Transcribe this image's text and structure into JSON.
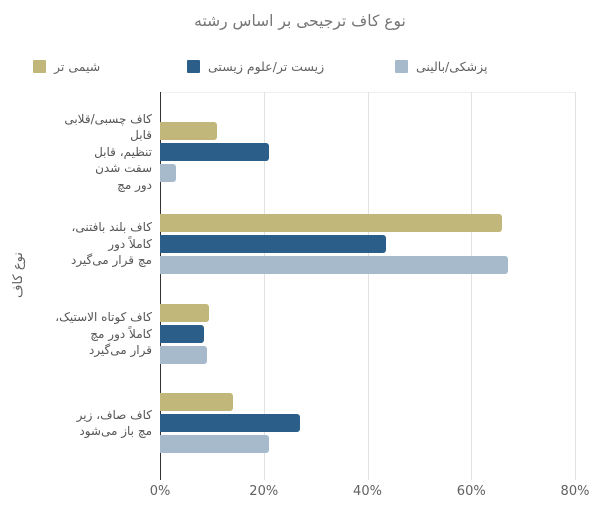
{
  "chart_data": {
    "type": "bar",
    "orientation": "horizontal",
    "title": "نوع کاف ترجیحی بر اساس رشته",
    "y_axis_title": "نوع کاف",
    "xlabel": "",
    "x_tick_labels": [
      "0%",
      "20%",
      "40%",
      "60%",
      "80%"
    ],
    "x_tick_values": [
      0,
      20,
      40,
      60,
      80
    ],
    "xlim": [
      0,
      80
    ],
    "grid": true,
    "legend_position": "top",
    "categories": [
      "کاف چسبی/قلابی قابل تنظیم، قابل سفت شدن دور مچ",
      "کاف بلند بافتنی، کاملاً دور مچ قرار می‌گیرد",
      "کاف کوتاه الاستیک، کاملاً دور مچ قرار می‌گیرد",
      "کاف صاف، زیر مچ باز می‌شود"
    ],
    "category_label_lines": [
      [
        "کاف چسبی/قلابی",
        "قابل",
        "تنظیم، قابل",
        "سفت شدن",
        "دور مچ"
      ],
      [
        "کاف بلند بافتنی،",
        "کاملاً دور",
        "مچ قرار می‌گیرد"
      ],
      [
        "کاف کوتاه الاستیک،",
        "کاملاً دور مچ",
        "قرار می‌گیرد"
      ],
      [
        "کاف صاف، زیر",
        "مچ باز می‌شود"
      ]
    ],
    "series": [
      {
        "name": "شیمی تر",
        "color": "#c2b77b",
        "values": [
          11,
          66,
          9.5,
          14
        ]
      },
      {
        "name": "زیست تر/علوم زیستی",
        "color": "#2b5f8a",
        "values": [
          21,
          43.5,
          8.5,
          27
        ]
      },
      {
        "name": "پزشکی/بالینی",
        "color": "#a6bacc",
        "values": [
          3,
          67,
          9,
          21
        ]
      }
    ]
  },
  "colors": {
    "title_text": "#757575",
    "axis_text": "#616161",
    "category_text": "#555555",
    "gridline": "#e2e2e2",
    "axis_line": "#333333"
  }
}
